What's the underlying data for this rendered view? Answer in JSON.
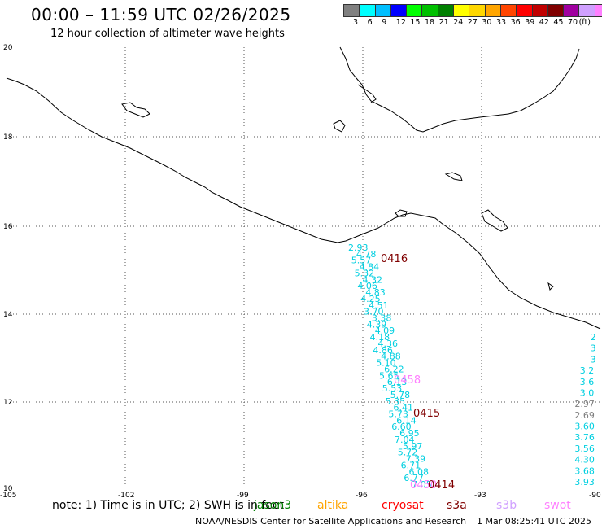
{
  "header": {
    "title": "00:00 – 11:59 UTC 02/26/2025",
    "subtitle": "12 hour collection of altimeter wave heights"
  },
  "legend": {
    "unit": "(ft)",
    "colors": [
      "#808080",
      "#00ffff",
      "#00bfff",
      "#0000ff",
      "#00ff00",
      "#00c000",
      "#008000",
      "#ffff00",
      "#ffd700",
      "#ffa500",
      "#ff4500",
      "#ff0000",
      "#c00000",
      "#800000",
      "#a000a0",
      "#d0a0ff",
      "#ff80ff",
      "#000000"
    ],
    "labels": [
      "3",
      "6",
      "9",
      "12",
      "15",
      "18",
      "21",
      "24",
      "27",
      "30",
      "33",
      "36",
      "39",
      "42",
      "45",
      "70"
    ]
  },
  "axes": {
    "lon_labels": [
      "-105",
      "-102",
      "-99",
      "-96",
      "-93",
      "-90"
    ],
    "lat_labels": [
      "20",
      "18",
      "16",
      "14",
      "12",
      "10"
    ]
  },
  "tracks": [
    {
      "time": "0416",
      "color": "#800000"
    },
    {
      "time": "0458",
      "color": "#ff80ff"
    },
    {
      "time": "0415",
      "color": "#800000"
    },
    {
      "time": "0450",
      "color": "#ff80ff"
    },
    {
      "time": "0414",
      "color": "#800000"
    }
  ],
  "track1_values": [
    "2.93",
    "4.78",
    "5.57",
    "4.84",
    "5.32",
    "4.32",
    "4.06",
    "4.83",
    "4.25",
    "4.51",
    "3.70",
    "3.38",
    "4.39",
    "4.09",
    "4.18",
    "4.36",
    "4.86",
    "4.88",
    "5.10",
    "6.22",
    "5.65",
    "6.13",
    "5.53",
    "5.78",
    "5.35",
    "6.41",
    "5.73",
    "6.14",
    "6.60",
    "6.95",
    "7.04",
    "5.97",
    "5.72",
    "7.39",
    "6.71",
    "6.08",
    "6.77",
    "7.05"
  ],
  "right_values": [
    "2",
    "3",
    "3",
    "3.2",
    "3.6",
    "3.0",
    "2.97",
    "2.69",
    "3.60",
    "3.76",
    "3.56",
    "4.30",
    "3.68",
    "3.93"
  ],
  "footer": {
    "note": "note:  1) Time is in UTC;  2) SWH is in feet",
    "satellites": [
      {
        "name": "jason3",
        "color": "#008000"
      },
      {
        "name": "altika",
        "color": "#ffa500"
      },
      {
        "name": "cryosat",
        "color": "#ff0000"
      },
      {
        "name": "s3a",
        "color": "#800000"
      },
      {
        "name": "s3b",
        "color": "#d0a0ff"
      },
      {
        "name": "swot",
        "color": "#ff80ff"
      }
    ],
    "credit": "NOAA/NESDIS Center for Satellite Applications and Research",
    "timestamp": "1 Mar 08:25:41 UTC 2025"
  }
}
